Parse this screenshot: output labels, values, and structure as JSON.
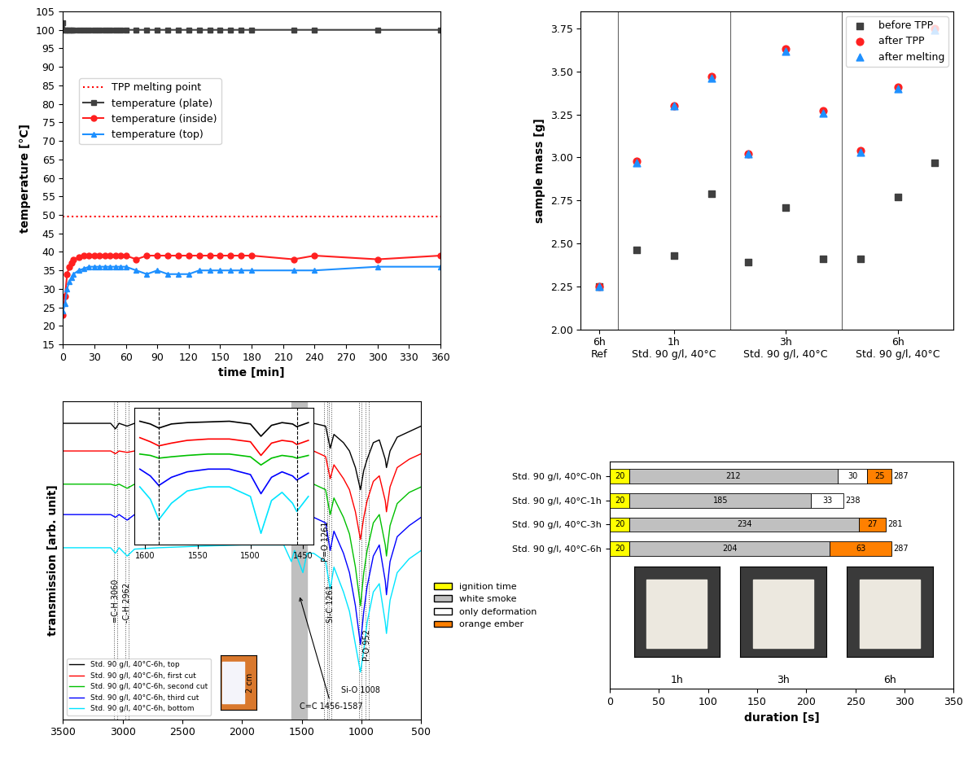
{
  "chart_data": [
    {
      "type": "line",
      "xlabel": "time [min]",
      "ylabel": "temperature [°C]",
      "x": [
        0,
        2,
        4,
        6,
        8,
        10,
        15,
        20,
        25,
        30,
        35,
        40,
        45,
        50,
        55,
        60,
        70,
        80,
        90,
        100,
        110,
        120,
        130,
        140,
        150,
        160,
        170,
        180,
        220,
        240,
        300,
        360
      ],
      "series": [
        {
          "name": "TPP melting point",
          "color": "#ff0000",
          "marker": "none",
          "line_style": "dotted",
          "values": [
            49.5,
            49.5,
            49.5,
            49.5,
            49.5,
            49.5,
            49.5,
            49.5,
            49.5,
            49.5,
            49.5,
            49.5,
            49.5,
            49.5,
            49.5,
            49.5,
            49.5,
            49.5,
            49.5,
            49.5,
            49.5,
            49.5,
            49.5,
            49.5,
            49.5,
            49.5,
            49.5,
            49.5,
            49.5,
            49.5,
            49.5,
            49.5
          ]
        },
        {
          "name": "temperature (plate)",
          "color": "#404040",
          "marker": "square",
          "line_style": "solid",
          "values": [
            102,
            100,
            100,
            100,
            100,
            100,
            100,
            100,
            100,
            100,
            100,
            100,
            100,
            100,
            100,
            100,
            100,
            100,
            100,
            100,
            100,
            100,
            100,
            100,
            100,
            100,
            100,
            100,
            100,
            100,
            100,
            100
          ]
        },
        {
          "name": "temperature (inside)",
          "color": "#ff2020",
          "marker": "circle",
          "line_style": "solid",
          "values": [
            23,
            28,
            34,
            36,
            37,
            38,
            38.5,
            39,
            39,
            39,
            39,
            39,
            39,
            39,
            39,
            39,
            38,
            39,
            39,
            39,
            39,
            39,
            39,
            39,
            39,
            39,
            39,
            39,
            38,
            39,
            38,
            39
          ]
        },
        {
          "name": "temperature (top)",
          "color": "#1e90ff",
          "marker": "triangle",
          "line_style": "solid",
          "values": [
            24,
            26,
            30,
            32,
            33,
            34,
            35,
            35.5,
            36,
            36,
            36,
            36,
            36,
            36,
            36,
            36,
            35,
            34,
            35,
            34,
            34,
            34,
            35,
            35,
            35,
            35,
            35,
            35,
            35,
            35,
            36,
            36
          ]
        }
      ],
      "xlim": [
        0,
        360
      ],
      "xticks": [
        0,
        30,
        60,
        90,
        120,
        150,
        180,
        210,
        240,
        270,
        300,
        330,
        360
      ],
      "ylim": [
        15,
        105
      ],
      "yticks": [
        15,
        20,
        25,
        30,
        35,
        40,
        45,
        50,
        55,
        60,
        65,
        70,
        75,
        80,
        85,
        90,
        95,
        100,
        105
      ],
      "grid": false,
      "legend": "center left"
    },
    {
      "type": "scatter",
      "ylabel": "sample mass [g]",
      "categories": [
        "6h\nRef",
        null,
        "1h\nStd. 90 g/l, 40°C",
        null,
        null,
        "3h\nStd. 90 g/l, 40°C",
        null,
        null,
        "6h\nStd. 90 g/l, 40°C",
        null
      ],
      "series": [
        {
          "name": "before TPP",
          "color": "#404040",
          "marker": "square",
          "values": [
            2.25,
            2.46,
            2.43,
            2.79,
            2.39,
            2.71,
            2.41,
            2.41,
            2.77,
            2.97
          ]
        },
        {
          "name": "after TPP",
          "color": "#ff2020",
          "marker": "circle",
          "values": [
            2.25,
            2.98,
            3.3,
            3.47,
            3.02,
            3.63,
            3.27,
            3.04,
            3.41,
            3.75
          ]
        },
        {
          "name": "after melting",
          "color": "#1e90ff",
          "marker": "triangle",
          "values": [
            2.25,
            2.97,
            3.3,
            3.46,
            3.02,
            3.62,
            3.26,
            3.03,
            3.4,
            3.74
          ]
        }
      ],
      "ylim": [
        2.0,
        3.85
      ],
      "yticks": [
        {
          "value": 2.0,
          "label": "2.00"
        },
        2.25,
        {
          "value": 2.5,
          "label": "2.50"
        },
        2.75,
        {
          "value": 3.0,
          "label": "3.00"
        },
        3.25,
        {
          "value": 3.5,
          "label": "3.50"
        },
        3.75
      ],
      "grid": false,
      "legend": "upper right"
    },
    {
      "type": "line",
      "ylabel": "transmission [arb. unit]",
      "x": [
        3500,
        3200,
        3100,
        3060,
        3030,
        2962,
        2900,
        2700,
        2400,
        2000,
        1800,
        1650,
        1587,
        1560,
        1490,
        1456,
        1400,
        1300,
        1261,
        1230,
        1150,
        1100,
        1050,
        1008,
        980,
        952,
        900,
        850,
        800,
        790,
        760,
        700,
        600,
        500
      ],
      "series": [
        {
          "name": "Std. 90 g/l, 40°C-6h, top",
          "color": "#000000",
          "values": [
            9.2,
            9.2,
            9.2,
            9.0,
            9.2,
            9.1,
            9.2,
            9.2,
            9.25,
            9.3,
            9.3,
            9.3,
            9.2,
            9.25,
            9.0,
            9.2,
            9.2,
            9.1,
            8.3,
            8.8,
            8.5,
            8.2,
            7.6,
            6.8,
            7.5,
            7.9,
            8.5,
            8.6,
            7.9,
            7.6,
            8.2,
            8.7,
            8.9,
            9.1
          ]
        },
        {
          "name": "Std. 90 g/l, 40°C-6h, first cut",
          "color": "#ff0000",
          "values": [
            8.2,
            8.2,
            8.2,
            8.1,
            8.2,
            8.15,
            8.2,
            8.2,
            8.2,
            8.25,
            8.25,
            8.25,
            8.15,
            8.2,
            7.8,
            8.1,
            8.2,
            8.0,
            7.2,
            7.7,
            7.2,
            6.8,
            6.0,
            5.0,
            5.8,
            6.4,
            7.1,
            7.3,
            6.4,
            6.0,
            6.9,
            7.6,
            7.9,
            8.1
          ]
        },
        {
          "name": "Std. 90 g/l, 40°C-6h, second cut",
          "color": "#00c000",
          "values": [
            7.0,
            7.0,
            7.0,
            6.95,
            7.0,
            6.85,
            7.0,
            7.0,
            7.05,
            7.1,
            7.1,
            7.1,
            7.0,
            7.05,
            6.8,
            7.0,
            7.0,
            6.8,
            5.9,
            6.5,
            5.8,
            5.2,
            4.0,
            2.6,
            3.8,
            4.6,
            5.6,
            5.9,
            4.8,
            4.4,
            5.5,
            6.3,
            6.7,
            6.9
          ]
        },
        {
          "name": "Std. 90 g/l, 40°C-6h, third cut",
          "color": "#0000ff",
          "values": [
            5.9,
            5.9,
            5.9,
            5.8,
            5.9,
            5.7,
            5.9,
            5.9,
            5.95,
            6.0,
            6.0,
            6.0,
            5.7,
            5.9,
            5.4,
            5.8,
            5.8,
            5.6,
            4.6,
            5.3,
            4.5,
            3.8,
            2.6,
            1.2,
            2.4,
            3.3,
            4.4,
            4.8,
            3.5,
            3.0,
            4.2,
            5.1,
            5.5,
            5.8
          ]
        },
        {
          "name": "Std. 90 g/l, 40°C-6h, bottom",
          "color": "#00e5ff",
          "values": [
            4.7,
            4.7,
            4.7,
            4.5,
            4.7,
            4.4,
            4.65,
            4.7,
            4.75,
            4.8,
            4.8,
            4.8,
            4.2,
            4.6,
            3.8,
            4.5,
            4.5,
            4.2,
            3.2,
            4.0,
            3.1,
            2.4,
            1.2,
            0.2,
            1.0,
            2.0,
            3.1,
            3.4,
            2.0,
            1.6,
            2.8,
            3.8,
            4.3,
            4.6
          ]
        }
      ],
      "xlim": [
        3500,
        500
      ],
      "xticks": [
        3500,
        3000,
        2500,
        2000,
        1500,
        1000,
        500
      ],
      "ylim": [
        -1.5,
        10
      ],
      "tick_labels": "x",
      "grid": false,
      "legend": "lower left",
      "bands": [
        {
          "label": "=C-H 3060",
          "x": 3060
        },
        {
          "label": "-C-H 2962",
          "x": 2962
        },
        {
          "label": "P=O 1261",
          "x": 1300
        },
        {
          "label": "Si-C 1261",
          "x": 1261
        },
        {
          "label": "Si-O 1008",
          "x": 1008
        },
        {
          "label": "P-O 952",
          "x": 952
        }
      ],
      "span": {
        "label": "C=C 1456-1587",
        "from": 1456,
        "to": 1587
      },
      "photo_label": "2 cm",
      "inset": {
        "x": [
          1605,
          1595,
          1587,
          1575,
          1560,
          1540,
          1520,
          1500,
          1490,
          1480,
          1470,
          1460,
          1456,
          1445
        ],
        "values": [
          [
            9.0,
            8.8,
            8.5,
            8.8,
            8.9,
            8.95,
            9.0,
            8.8,
            7.9,
            8.7,
            8.9,
            8.8,
            8.6,
            8.9
          ],
          [
            7.8,
            7.5,
            7.2,
            7.4,
            7.6,
            7.7,
            7.7,
            7.5,
            6.5,
            7.4,
            7.6,
            7.5,
            7.3,
            7.6
          ],
          [
            6.6,
            6.5,
            6.3,
            6.4,
            6.5,
            6.6,
            6.6,
            6.4,
            5.8,
            6.3,
            6.5,
            6.4,
            6.3,
            6.5
          ],
          [
            5.5,
            5.0,
            4.3,
            4.9,
            5.3,
            5.5,
            5.5,
            5.1,
            3.7,
            4.9,
            5.3,
            5.0,
            4.7,
            5.2
          ],
          [
            4.2,
            3.3,
            1.8,
            3.0,
            3.9,
            4.2,
            4.2,
            3.5,
            0.8,
            3.2,
            3.8,
            3.0,
            2.4,
            3.5
          ]
        ],
        "xlim": [
          1610,
          1440
        ],
        "xticks": [
          1600,
          1550,
          1500,
          1450
        ],
        "ylim": [
          0,
          10
        ],
        "tick_labels": "x"
      }
    },
    {
      "type": "bar",
      "orientation": "horizontal",
      "stacked": true,
      "data_labels": true,
      "xlabel": "duration [s]",
      "categories": [
        "Std. 90 g/l, 40°C-0h",
        "Std. 90 g/l, 40°C-1h",
        "Std. 90 g/l, 40°C-3h",
        "Std. 90 g/l, 40°C-6h"
      ],
      "series": [
        {
          "name": "ignition time",
          "color": "#ffff00",
          "values": [
            20,
            20,
            20,
            20
          ]
        },
        {
          "name": "white smoke",
          "color": "#c0c0c0",
          "values": [
            212,
            185,
            234,
            204
          ]
        },
        {
          "name": "only deformation",
          "color": "#ffffff",
          "values": [
            30,
            33,
            null,
            null
          ]
        },
        {
          "name": "orange ember",
          "color": "#ff8000",
          "values": [
            25,
            null,
            27,
            63
          ]
        }
      ],
      "totals": [
        287,
        238,
        281,
        287
      ],
      "xlim": [
        0,
        350
      ],
      "xticks": [
        0,
        50,
        100,
        150,
        200,
        250,
        300,
        350
      ],
      "grid": false,
      "legend": "center left",
      "photo_labels": [
        "1h",
        "3h",
        "6h"
      ]
    }
  ]
}
